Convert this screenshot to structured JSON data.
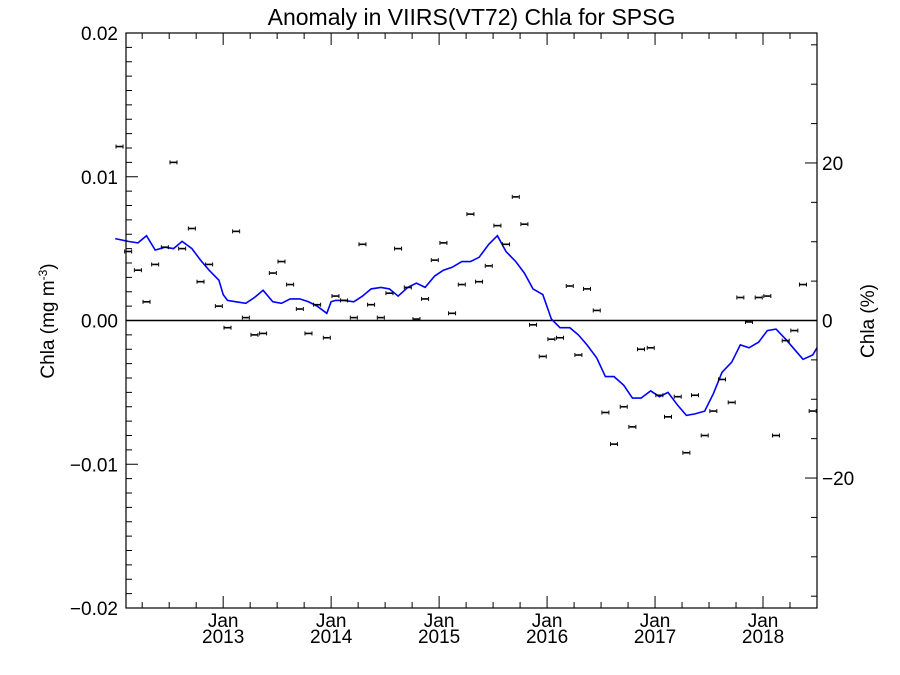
{
  "chart_data": {
    "type": "scatter",
    "title": "Anomaly in VIIRS(VT72) Chla for SPSG",
    "ylabel_left": {
      "prefix": "Chla (mg m",
      "superscript": "-3",
      "suffix": ")"
    },
    "ylabel_right": "Chla (%)",
    "xlim": [
      2012.1,
      2018.5
    ],
    "ylim_left": [
      -0.02,
      0.02
    ],
    "ylim_right": [
      -36.5,
      36.5
    ],
    "left_ticks": [
      {
        "value": 0.02,
        "label": "0.02"
      },
      {
        "value": 0.01,
        "label": "0.01"
      },
      {
        "value": 0.0,
        "label": "0.00"
      },
      {
        "value": -0.01,
        "label": "−0.01"
      },
      {
        "value": -0.02,
        "label": "−0.02"
      }
    ],
    "right_ticks": [
      {
        "value": 20,
        "label": "20"
      },
      {
        "value": 0,
        "label": "0"
      },
      {
        "value": -20,
        "label": "−20"
      }
    ],
    "x_ticks": [
      {
        "value": 2013.0,
        "month": "Jan",
        "year": "2013"
      },
      {
        "value": 2014.0,
        "month": "Jan",
        "year": "2014"
      },
      {
        "value": 2015.0,
        "month": "Jan",
        "year": "2015"
      },
      {
        "value": 2016.0,
        "month": "Jan",
        "year": "2016"
      },
      {
        "value": 2017.0,
        "month": "Jan",
        "year": "2017"
      },
      {
        "value": 2018.0,
        "month": "Jan",
        "year": "2018"
      }
    ],
    "zero_line": true,
    "colors": {
      "points": "#000000",
      "line": "#0000ff",
      "axes": "#000000"
    },
    "series": [
      {
        "type": "scatter-errorbar",
        "x": [
          2012.04,
          2012.12,
          2012.21,
          2012.29,
          2012.37,
          2012.46,
          2012.54,
          2012.62,
          2012.71,
          2012.79,
          2012.87,
          2012.96,
          2013.04,
          2013.12,
          2013.21,
          2013.29,
          2013.37,
          2013.46,
          2013.54,
          2013.62,
          2013.71,
          2013.79,
          2013.87,
          2013.96,
          2014.04,
          2014.12,
          2014.21,
          2014.29,
          2014.37,
          2014.46,
          2014.54,
          2014.62,
          2014.71,
          2014.79,
          2014.87,
          2014.96,
          2015.04,
          2015.12,
          2015.21,
          2015.29,
          2015.37,
          2015.46,
          2015.54,
          2015.62,
          2015.71,
          2015.79,
          2015.87,
          2015.96,
          2016.04,
          2016.12,
          2016.21,
          2016.29,
          2016.37,
          2016.46,
          2016.54,
          2016.62,
          2016.71,
          2016.79,
          2016.87,
          2016.96,
          2017.04,
          2017.12,
          2017.21,
          2017.29,
          2017.37,
          2017.46,
          2017.54,
          2017.62,
          2017.71,
          2017.79,
          2017.87,
          2017.96,
          2018.04,
          2018.12,
          2018.21,
          2018.29,
          2018.37,
          2018.46
        ],
        "y": [
          0.0121,
          0.0048,
          0.0035,
          0.0013,
          0.0039,
          0.0051,
          0.011,
          0.005,
          0.0064,
          0.0027,
          0.0039,
          0.001,
          -0.0005,
          0.0062,
          0.0002,
          -0.001,
          -0.0009,
          0.0033,
          0.0041,
          0.0025,
          0.0008,
          -0.0009,
          0.0011,
          -0.0012,
          0.0017,
          0.0014,
          0.0002,
          0.0053,
          0.0011,
          0.0002,
          0.0019,
          0.005,
          0.0023,
          0.0001,
          0.0015,
          0.0042,
          0.0054,
          0.0005,
          0.0025,
          0.0074,
          0.0027,
          0.0038,
          0.0066,
          0.0053,
          0.0086,
          0.0067,
          -0.0003,
          -0.0025,
          -0.0013,
          -0.0012,
          0.0024,
          -0.0024,
          0.0022,
          0.0007,
          -0.0064,
          -0.0086,
          -0.006,
          -0.0074,
          -0.002,
          -0.0019,
          -0.0052,
          -0.0067,
          -0.0053,
          -0.0092,
          -0.0052,
          -0.008,
          -0.0063,
          -0.0041,
          -0.0057,
          0.0016,
          -0.0001,
          0.0016,
          0.0017,
          -0.008,
          -0.0014,
          -0.0007,
          0.0025,
          -0.0063
        ]
      },
      {
        "type": "line",
        "x": [
          2012.0,
          2012.12,
          2012.21,
          2012.29,
          2012.37,
          2012.46,
          2012.54,
          2012.62,
          2012.71,
          2012.79,
          2012.87,
          2012.96,
          2013.0,
          2013.04,
          2013.12,
          2013.21,
          2013.29,
          2013.37,
          2013.46,
          2013.54,
          2013.62,
          2013.71,
          2013.79,
          2013.87,
          2013.96,
          2014.0,
          2014.04,
          2014.12,
          2014.21,
          2014.29,
          2014.37,
          2014.46,
          2014.54,
          2014.62,
          2014.71,
          2014.79,
          2014.87,
          2014.96,
          2015.04,
          2015.12,
          2015.21,
          2015.29,
          2015.37,
          2015.46,
          2015.54,
          2015.62,
          2015.71,
          2015.79,
          2015.87,
          2015.96,
          2016.04,
          2016.12,
          2016.21,
          2016.29,
          2016.37,
          2016.46,
          2016.54,
          2016.62,
          2016.71,
          2016.79,
          2016.87,
          2016.96,
          2017.04,
          2017.12,
          2017.21,
          2017.29,
          2017.37,
          2017.46,
          2017.54,
          2017.62,
          2017.71,
          2017.79,
          2017.87,
          2017.96,
          2018.04,
          2018.12,
          2018.21,
          2018.29,
          2018.37,
          2018.46,
          2018.5
        ],
        "y": [
          0.0057,
          0.0055,
          0.0054,
          0.0059,
          0.0049,
          0.0051,
          0.005,
          0.0055,
          0.005,
          0.0042,
          0.0035,
          0.0028,
          0.0018,
          0.0014,
          0.0013,
          0.0012,
          0.0016,
          0.0021,
          0.0013,
          0.0012,
          0.0015,
          0.0015,
          0.0013,
          0.001,
          0.0005,
          0.0013,
          0.0014,
          0.0014,
          0.0013,
          0.0017,
          0.0022,
          0.0023,
          0.0022,
          0.0017,
          0.0023,
          0.0026,
          0.0023,
          0.0031,
          0.0035,
          0.0037,
          0.0041,
          0.0041,
          0.0044,
          0.0053,
          0.0059,
          0.0048,
          0.0041,
          0.0033,
          0.0022,
          0.0018,
          0.0001,
          -0.0005,
          -0.0005,
          -0.001,
          -0.0017,
          -0.0026,
          -0.0039,
          -0.0039,
          -0.0045,
          -0.0054,
          -0.0054,
          -0.0049,
          -0.0053,
          -0.005,
          -0.0059,
          -0.0066,
          -0.0065,
          -0.0063,
          -0.0051,
          -0.0036,
          -0.0029,
          -0.0017,
          -0.0019,
          -0.0015,
          -0.0007,
          -0.0006,
          -0.0013,
          -0.002,
          -0.0027,
          -0.0024,
          -0.0019
        ]
      }
    ]
  }
}
